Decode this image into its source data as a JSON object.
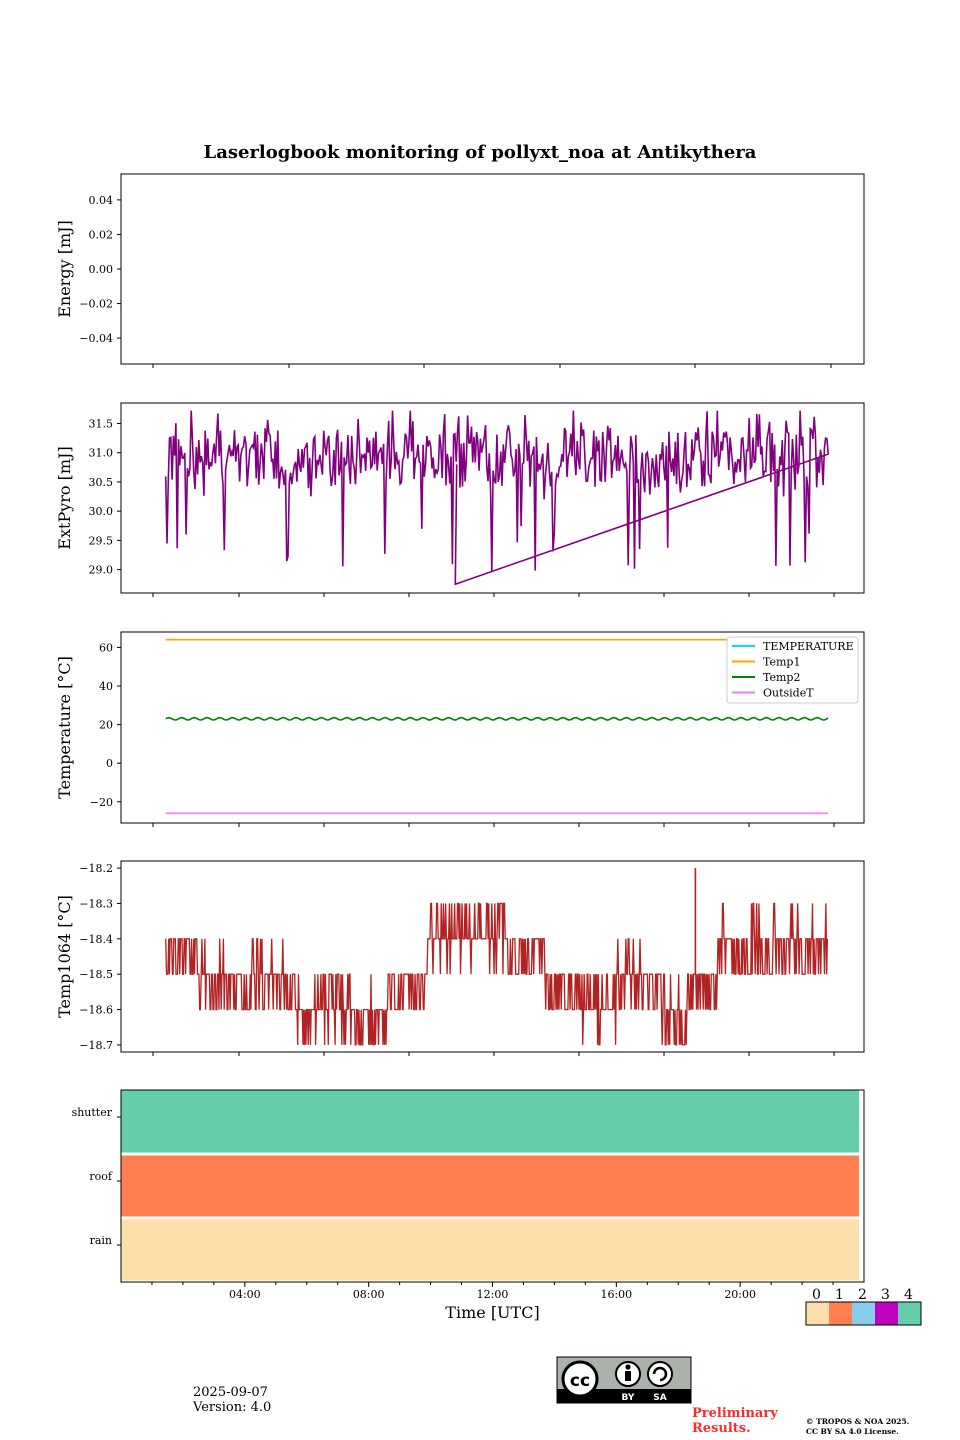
{
  "title": "Laserlogbook monitoring of pollyxt_noa at Antikythera",
  "footer": {
    "date": "2025-09-07",
    "version": "Version: 4.0",
    "preliminary_line1": "Preliminary",
    "preliminary_line2": "Results.",
    "copyright_line1": "© TROPOS & NOA 2025.",
    "copyright_line2": "CC BY SA 4.0 License.",
    "license_badge": {
      "cc": "cc",
      "by": "BY",
      "sa": "SA"
    }
  },
  "colorbar": {
    "labels": [
      "0",
      "1",
      "2",
      "3",
      "4"
    ],
    "colors": [
      "#fddfac",
      "#ff7f50",
      "#87ceeb",
      "#c000c0",
      "#66cdaa"
    ]
  },
  "chart_data": [
    {
      "type": "line",
      "panel": "energy",
      "ylabel": "Energy [mJ]",
      "ylim": [
        -0.055,
        0.055
      ],
      "yticks": [
        0.04,
        0.02,
        0.0,
        -0.02,
        -0.04
      ],
      "ytick_labels": [
        "0.04",
        "0.02",
        "0.00",
        "−0.02",
        "−0.04"
      ],
      "series": []
    },
    {
      "type": "line",
      "panel": "extpyro",
      "ylabel": "ExtPyro [mJ]",
      "ylim": [
        28.6,
        31.85
      ],
      "yticks": [
        31.5,
        31.0,
        30.5,
        30.0,
        29.5,
        29.0
      ],
      "ytick_labels": [
        "31.5",
        "31.0",
        "30.5",
        "30.0",
        "29.5",
        "29.0"
      ],
      "x_range_hours": [
        0.45,
        23.9
      ],
      "series": [
        {
          "name": "ExtPyro",
          "color": "#800080",
          "mean": 30.75,
          "amplitude": 0.5,
          "min": 28.75,
          "max": 31.72
        }
      ]
    },
    {
      "type": "line",
      "panel": "temperature",
      "ylabel": "Temperature [°C]",
      "ylim": [
        -31,
        68
      ],
      "yticks": [
        60,
        40,
        20,
        0,
        -20
      ],
      "ytick_labels": [
        "60",
        "40",
        "20",
        "0",
        "−20"
      ],
      "x_range_hours": [
        0.45,
        23.9
      ],
      "legend": "top-right",
      "series": [
        {
          "name": "TEMPERATURE",
          "color": "#00e5e5",
          "value": null
        },
        {
          "name": "Temp1",
          "color": "#ffa500",
          "value": 64
        },
        {
          "name": "Temp2",
          "color": "#008000",
          "value": 23,
          "oscillation": 0.6
        },
        {
          "name": "OutsideT",
          "color": "#ee82ee",
          "value": -26
        }
      ]
    },
    {
      "type": "line",
      "panel": "temp1064",
      "ylabel": "Temp1064 [°C]",
      "ylim": [
        -18.72,
        -18.18
      ],
      "yticks": [
        -18.2,
        -18.3,
        -18.4,
        -18.5,
        -18.6,
        -18.7
      ],
      "ytick_labels": [
        "−18.2",
        "−18.3",
        "−18.4",
        "−18.5",
        "−18.6",
        "−18.7"
      ],
      "x_range_hours": [
        0.45,
        23.9
      ],
      "series": [
        {
          "name": "Temp1064",
          "color": "#b22222",
          "segments": [
            {
              "from": 0.45,
              "to": 1.6,
              "levels": [
                -18.4,
                -18.5
              ]
            },
            {
              "from": 1.6,
              "to": 4.7,
              "levels": [
                -18.5,
                -18.6,
                -18.4
              ]
            },
            {
              "from": 4.7,
              "to": 7.0,
              "levels": [
                -18.6,
                -18.5,
                -18.7
              ]
            },
            {
              "from": 7.0,
              "to": 8.3,
              "levels": [
                -18.6,
                -18.7,
                -18.5
              ]
            },
            {
              "from": 8.3,
              "to": 9.7,
              "levels": [
                -18.5,
                -18.6
              ]
            },
            {
              "from": 9.7,
              "to": 12.6,
              "levels": [
                -18.4,
                -18.3,
                -18.5
              ]
            },
            {
              "from": 12.6,
              "to": 13.9,
              "levels": [
                -18.4,
                -18.5
              ]
            },
            {
              "from": 13.9,
              "to": 15.0,
              "levels": [
                -18.5,
                -18.6
              ]
            },
            {
              "from": 15.0,
              "to": 16.4,
              "levels": [
                -18.6,
                -18.5,
                -18.7
              ]
            },
            {
              "from": 16.4,
              "to": 18.0,
              "levels": [
                -18.5,
                -18.6,
                -18.4
              ]
            },
            {
              "from": 18.0,
              "to": 18.9,
              "levels": [
                -18.6,
                -18.7,
                -18.5
              ]
            },
            {
              "from": 18.9,
              "to": 20.0,
              "levels": [
                -18.5,
                -18.6
              ]
            },
            {
              "from": 20.0,
              "to": 23.9,
              "levels": [
                -18.4,
                -18.5,
                -18.3
              ]
            }
          ],
          "spikes": [
            {
              "hour": 19.2,
              "value": -18.2
            }
          ]
        }
      ]
    },
    {
      "type": "heatmap",
      "panel": "status",
      "xlabel": "Time [UTC]",
      "x_range_hours": [
        0,
        23.9
      ],
      "xticks": [
        "04:00",
        "08:00",
        "12:00",
        "16:00",
        "20:00"
      ],
      "xtick_hours": [
        4,
        8,
        12,
        16,
        20
      ],
      "rows": [
        {
          "name": "shutter",
          "value": 4
        },
        {
          "name": "roof",
          "value": 1
        },
        {
          "name": "rain",
          "value": 0
        }
      ]
    }
  ]
}
